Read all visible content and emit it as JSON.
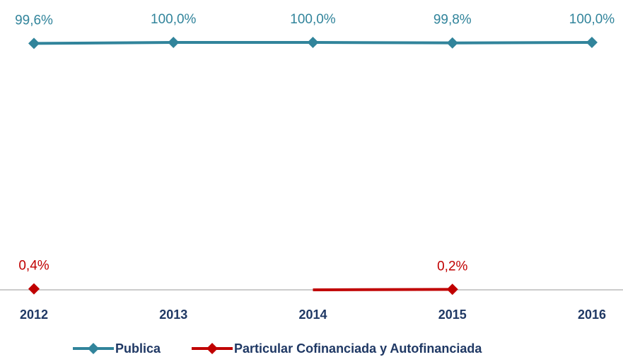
{
  "chart_data": {
    "type": "line",
    "categories": [
      "2012",
      "2013",
      "2014",
      "2015",
      "2016"
    ],
    "series": [
      {
        "name": "Publica",
        "color": "#31849b",
        "values": [
          99.6,
          100,
          100,
          99.8,
          100
        ],
        "value_labels": [
          "99,6%",
          "100,0%",
          "100,0%",
          "99,8%",
          "100,0%"
        ]
      },
      {
        "name": "Particular Cofinanciada y Autofinanciada",
        "color": "#c00000",
        "values": [
          0.4,
          null,
          0,
          0.2,
          null
        ],
        "value_labels": [
          "0,4%",
          null,
          null,
          "0,2%",
          null
        ]
      }
    ],
    "ylim": [
      0,
      100
    ]
  }
}
